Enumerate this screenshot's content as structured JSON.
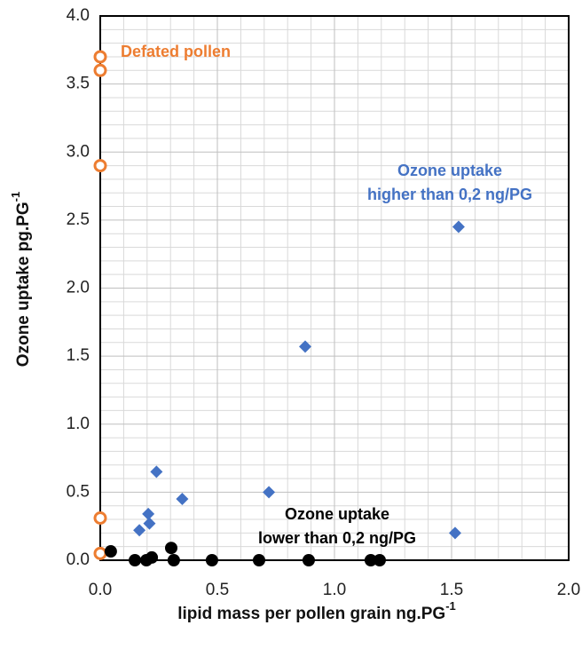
{
  "chart_data": {
    "type": "scatter",
    "xlabel": {
      "text": "lipid mass per pollen grain ng.PG",
      "sup": "-1"
    },
    "ylabel": {
      "text": "Ozone uptake pg.PG",
      "sup": "-1"
    },
    "xlim": [
      0,
      2
    ],
    "ylim": [
      0,
      4
    ],
    "xticks": [
      {
        "value": 0,
        "label": "0.0"
      },
      0.5,
      {
        "value": 1,
        "label": "1.0"
      },
      1.5,
      {
        "value": 2,
        "label": "2.0"
      }
    ],
    "yticks": [
      {
        "value": 0,
        "label": "0.0"
      },
      0.5,
      {
        "value": 1,
        "label": "1.0"
      },
      1.5,
      {
        "value": 2,
        "label": "2.0"
      },
      2.5,
      {
        "value": 3,
        "label": "3.0"
      },
      3.5,
      {
        "value": 4,
        "label": "4.0"
      }
    ],
    "grid": "minor",
    "series": [
      {
        "name": "Defated pollen",
        "color": "#ed7d31",
        "marker": "open-circle",
        "x": [
          0,
          0,
          0,
          0,
          0
        ],
        "values": [
          3.7,
          3.6,
          2.9,
          0.31,
          0.05
        ]
      },
      {
        "color": "#4472c4",
        "marker": "diamond",
        "x": [
          1.53,
          0.875,
          0.24,
          0.35,
          0.72,
          0.205,
          0.21,
          0.167,
          1.515
        ],
        "values": [
          2.45,
          1.57,
          0.65,
          0.45,
          0.5,
          0.34,
          0.27,
          0.22,
          0.2
        ]
      },
      {
        "color": "#000000",
        "marker": "circle",
        "x": [
          0.045,
          0.148,
          0.197,
          0.22,
          0.303,
          0.314,
          0.477,
          0.678,
          0.89,
          1.155,
          1.193
        ],
        "values": [
          0.065,
          0,
          0,
          0.02,
          0.09,
          0,
          0,
          0,
          0,
          0,
          0
        ]
      }
    ],
    "annotations": [
      {
        "lines": [
          "Defated pollen"
        ],
        "color": "#ed7d31"
      },
      {
        "lines": [
          "Ozone uptake",
          "higher than 0,2 ng/PG"
        ],
        "color": "#4472c4"
      },
      {
        "lines": [
          "Ozone uptake",
          "lower than 0,2 ng/PG"
        ],
        "color": "#000000"
      }
    ]
  }
}
